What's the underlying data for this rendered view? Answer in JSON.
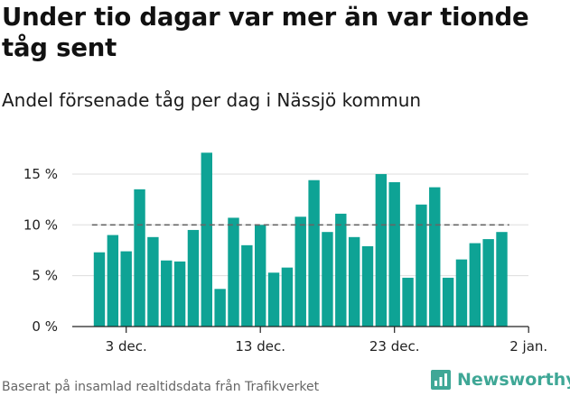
{
  "title": "Under tio dagar var mer än var tionde tåg sent",
  "subtitle": "Andel försenade tåg per dag i Nässjö kommun",
  "source": "Baserat på insamlad realtidsdata från Trafikverket",
  "brand": {
    "name": "Newsworthy",
    "icon": "newsworthy-logo-icon",
    "color": "#3fa796"
  },
  "chart_data": {
    "type": "bar",
    "series_color": "#0ea395",
    "reference_line": {
      "value": 10,
      "style": "dashed",
      "color": "#666666"
    },
    "ylim": [
      0,
      17.5
    ],
    "yticks": [
      {
        "value": 0,
        "label": "0 %"
      },
      {
        "value": 5,
        "label": "5 %"
      },
      {
        "value": 10,
        "label": "10 %"
      },
      {
        "value": 15,
        "label": "15 %"
      }
    ],
    "xticks": [
      {
        "day": 3,
        "label": "3 dec."
      },
      {
        "day": 13,
        "label": "13 dec."
      },
      {
        "day": 23,
        "label": "23 dec."
      },
      {
        "day": 33,
        "label": "2 jan."
      }
    ],
    "days": [
      1,
      2,
      3,
      4,
      5,
      6,
      7,
      8,
      9,
      10,
      11,
      12,
      13,
      14,
      15,
      16,
      17,
      18,
      19,
      20,
      21,
      22,
      23,
      24,
      25,
      26,
      27,
      28,
      29,
      30,
      31
    ],
    "values": [
      7.3,
      9.0,
      7.4,
      13.5,
      8.8,
      6.5,
      6.4,
      9.5,
      17.1,
      3.7,
      10.7,
      8.0,
      10.0,
      5.3,
      5.8,
      10.8,
      14.4,
      9.3,
      11.1,
      8.8,
      7.9,
      15.0,
      14.2,
      4.8,
      12.0,
      13.7,
      4.8,
      6.6,
      8.2,
      8.6,
      9.3
    ],
    "grid": true,
    "legend": "none"
  }
}
